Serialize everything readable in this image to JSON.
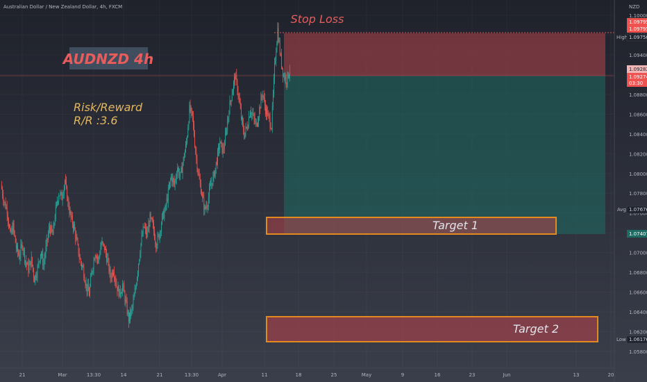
{
  "header": {
    "symbol_title": "Australian Dollar / New Zealand Dollar, 4h, FXCM"
  },
  "colors": {
    "background": "#2a2e39",
    "up": "#26a69a",
    "down": "#ef5350",
    "stop_zone": "#b2434b",
    "profit_zone": "#1e6b63",
    "target_border": "#e58a1f",
    "title": "#e85c5c",
    "rr_text": "#e6b85c"
  },
  "chart_data": {
    "type": "candlestick",
    "title": "AUDNZD 4h",
    "quote_currency": "NZD",
    "x_tick_labels": [
      "21",
      "Mar",
      "13:30",
      "14",
      "21",
      "13:30",
      "Apr",
      "11",
      "18",
      "25",
      "May",
      "9",
      "16",
      "23",
      "Jun",
      "13",
      "20"
    ],
    "y_tick_labels": [
      "1.10000",
      "1.09600",
      "1.09400",
      "1.09000",
      "1.08800",
      "1.08600",
      "1.08400",
      "1.08200",
      "1.08000",
      "1.07800",
      "1.07600",
      "1.07200",
      "1.07000",
      "1.06800",
      "1.06600",
      "1.06400",
      "1.06200",
      "1.05800"
    ],
    "ylim": [
      1.0575,
      1.1005
    ],
    "markers": {
      "stop_loss_price_a": "1.09795",
      "stop_loss_price_b": "1.09795",
      "high_label": "High",
      "high_value": "1.09750",
      "current_price": "1.09282",
      "entry_price": "1.09274",
      "countdown": "03:30",
      "avg_label": "Avg",
      "avg_value": "1.07676",
      "target1_price": "1.07407",
      "low_label": "Low",
      "low_value": "1.06176"
    },
    "position": {
      "entry": 1.0927,
      "stop": 1.0979,
      "target": 1.0741
    },
    "zones": {
      "target1": {
        "label": "Target 1",
        "top": 1.0758,
        "bottom": 1.0741
      },
      "target2": {
        "label": "Target 2",
        "top": 1.0645,
        "bottom": 1.0618
      }
    },
    "annotations": {
      "stop_loss": "Stop Loss",
      "rr_line1": "Risk/Reward",
      "rr_line2": "R/R :3.6"
    },
    "close_path": [
      1.079,
      1.077,
      1.076,
      1.073,
      1.074,
      1.0715,
      1.0705,
      1.072,
      1.07,
      1.069,
      1.07,
      1.0678,
      1.069,
      1.071,
      1.0695,
      1.072,
      1.074,
      1.073,
      1.076,
      1.078,
      1.0775,
      1.0795,
      1.077,
      1.075,
      1.074,
      1.072,
      1.07,
      1.069,
      1.067,
      1.066,
      1.069,
      1.071,
      1.07,
      1.072,
      1.0715,
      1.07,
      1.068,
      1.069,
      1.067,
      1.066,
      1.067,
      1.065,
      1.063,
      1.064,
      1.066,
      1.069,
      1.072,
      1.074,
      1.073,
      1.075,
      1.074,
      1.072,
      1.073,
      1.075,
      1.076,
      1.078,
      1.08,
      1.079,
      1.081,
      1.08,
      1.082,
      1.084,
      1.088,
      1.087,
      1.083,
      1.08,
      1.078,
      1.076,
      1.077,
      1.079,
      1.08,
      1.082,
      1.084,
      1.083,
      1.085,
      1.088,
      1.09,
      1.092,
      1.09,
      1.087,
      1.085,
      1.086,
      1.088,
      1.087,
      1.086,
      1.088,
      1.09,
      1.088,
      1.087,
      1.086,
      1.093,
      1.0975,
      1.094,
      1.092,
      1.0915,
      1.0928
    ]
  }
}
